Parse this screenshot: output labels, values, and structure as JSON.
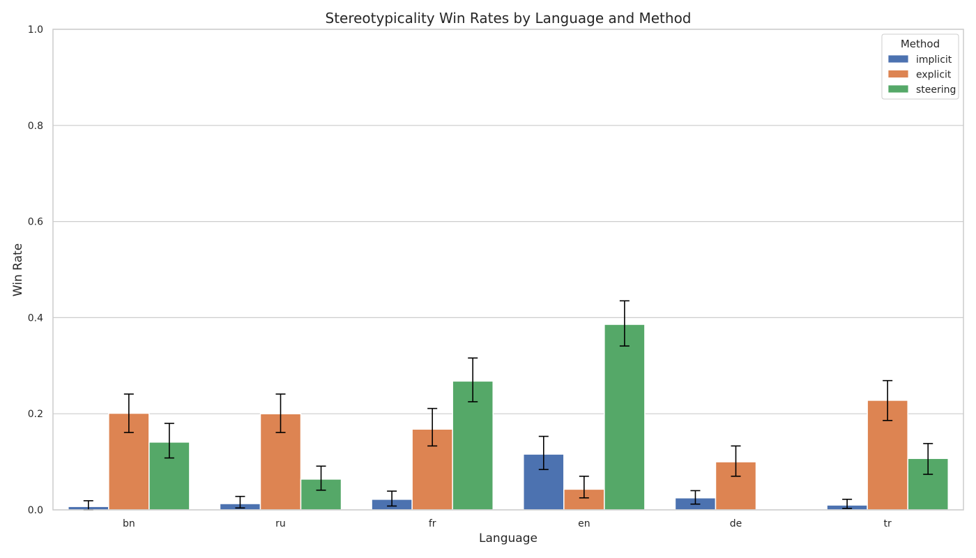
{
  "chart_data": {
    "type": "bar",
    "title": "Stereotypicality Win Rates by Language and Method",
    "xlabel": "Language",
    "ylabel": "Win Rate",
    "ylim": [
      0,
      1.0
    ],
    "yticks": [
      "0.0",
      "0.2",
      "0.4",
      "0.6",
      "0.8",
      "1.0"
    ],
    "grid": true,
    "legend": {
      "title": "Method",
      "position": "top-right"
    },
    "categories": [
      "bn",
      "ru",
      "fr",
      "en",
      "de",
      "tr"
    ],
    "series": [
      {
        "name": "implicit",
        "color": "#4c72b0",
        "values": [
          0.007,
          0.013,
          0.022,
          0.116,
          0.025,
          0.01
        ],
        "err_low": [
          0.0,
          0.004,
          0.008,
          0.084,
          0.012,
          0.003
        ],
        "err_high": [
          0.019,
          0.028,
          0.039,
          0.153,
          0.04,
          0.022
        ]
      },
      {
        "name": "explicit",
        "color": "#dd8452",
        "values": [
          0.201,
          0.2,
          0.168,
          0.043,
          0.1,
          0.228
        ],
        "err_low": [
          0.161,
          0.161,
          0.133,
          0.025,
          0.07,
          0.186
        ],
        "err_high": [
          0.241,
          0.241,
          0.211,
          0.07,
          0.133,
          0.269
        ]
      },
      {
        "name": "steering",
        "color": "#55a868",
        "values": [
          0.141,
          0.064,
          0.268,
          0.386,
          0.0,
          0.107
        ],
        "err_low": [
          0.108,
          0.041,
          0.225,
          0.341,
          null,
          0.074
        ],
        "err_high": [
          0.18,
          0.091,
          0.316,
          0.435,
          null,
          0.138
        ]
      }
    ]
  }
}
